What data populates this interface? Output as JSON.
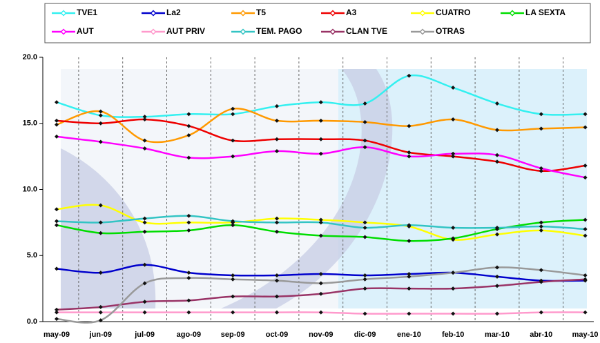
{
  "chart_data": {
    "type": "line",
    "categories": [
      "may-09",
      "jun-09",
      "jul-09",
      "ago-09",
      "sep-09",
      "oct-09",
      "nov-09",
      "dic-09",
      "ene-10",
      "feb-10",
      "mar-10",
      "abr-10",
      "may-10"
    ],
    "series": [
      {
        "name": "TVE1",
        "color": "#33f0f0",
        "values": [
          16.6,
          15.6,
          15.5,
          15.7,
          15.7,
          16.3,
          16.6,
          16.5,
          18.6,
          17.7,
          16.5,
          15.7,
          15.7
        ]
      },
      {
        "name": "La2",
        "color": "#0000cc",
        "values": [
          4.0,
          3.7,
          4.3,
          3.7,
          3.5,
          3.5,
          3.6,
          3.5,
          3.6,
          3.7,
          3.4,
          3.1,
          3.1
        ]
      },
      {
        "name": "T5",
        "color": "#ff9900",
        "values": [
          14.9,
          15.9,
          13.7,
          14.1,
          16.1,
          15.2,
          15.2,
          15.1,
          14.8,
          15.3,
          14.5,
          14.6,
          14.7
        ]
      },
      {
        "name": "A3",
        "color": "#ee0000",
        "values": [
          15.2,
          15.0,
          15.3,
          14.8,
          13.7,
          13.8,
          13.8,
          13.7,
          12.8,
          12.5,
          12.1,
          11.4,
          11.8
        ]
      },
      {
        "name": "CUATRO",
        "color": "#ffff00",
        "values": [
          8.5,
          8.8,
          7.5,
          7.5,
          7.5,
          7.8,
          7.7,
          7.5,
          7.2,
          6.2,
          6.6,
          6.9,
          6.5
        ]
      },
      {
        "name": "LA SEXTA",
        "color": "#00dd00",
        "values": [
          7.3,
          6.7,
          6.8,
          6.9,
          7.3,
          6.8,
          6.5,
          6.4,
          6.1,
          6.3,
          7.0,
          7.5,
          7.7
        ]
      },
      {
        "name": "AUT",
        "color": "#ff00ff",
        "values": [
          14.0,
          13.6,
          13.1,
          12.4,
          12.5,
          12.9,
          12.7,
          13.2,
          12.5,
          12.7,
          12.6,
          11.6,
          10.9
        ]
      },
      {
        "name": "AUT PRIV",
        "color": "#ff99cc",
        "values": [
          0.7,
          0.7,
          0.7,
          0.7,
          0.7,
          0.7,
          0.7,
          0.6,
          0.6,
          0.6,
          0.6,
          0.7,
          0.7
        ]
      },
      {
        "name": "TEM. PAGO",
        "color": "#33c4c4",
        "values": [
          7.6,
          7.5,
          7.8,
          8.0,
          7.6,
          7.5,
          7.5,
          7.1,
          7.3,
          7.1,
          7.1,
          7.2,
          7.0
        ]
      },
      {
        "name": "CLAN TVE",
        "color": "#993366",
        "values": [
          0.9,
          1.1,
          1.5,
          1.6,
          1.9,
          1.9,
          2.1,
          2.5,
          2.5,
          2.5,
          2.7,
          3.0,
          3.2
        ]
      },
      {
        "name": "OTRAS",
        "color": "#999999",
        "values": [
          0.2,
          0.1,
          2.9,
          3.3,
          3.2,
          3.1,
          2.9,
          3.2,
          3.4,
          3.7,
          4.1,
          3.9,
          3.5
        ]
      }
    ],
    "ylim": [
      0,
      20
    ],
    "yticks": [
      {
        "value": 0,
        "label": "0.0"
      },
      {
        "value": 5,
        "label": "5.0"
      },
      {
        "value": 10,
        "label": "10.0"
      },
      {
        "value": 15,
        "label": "15.0"
      },
      {
        "value": 20,
        "label": "20.0"
      }
    ],
    "legend": "top"
  }
}
